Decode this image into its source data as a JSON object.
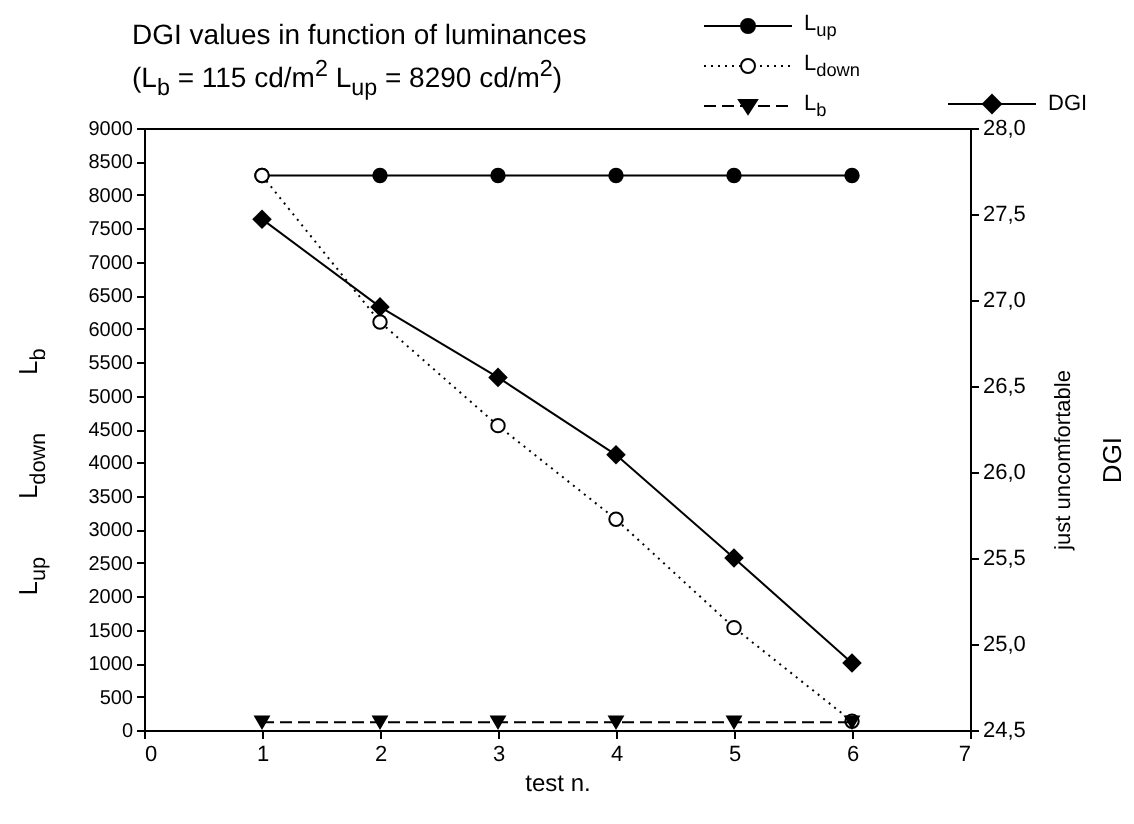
{
  "chart_data": {
    "type": "line",
    "title": "DGI values in function of luminances",
    "subtitle": "(L$_{b}$ = 115 cd/m$^{2}$ L$_{up}$ = 8290 cd/m$^{2}$)",
    "xlabel": "test n.",
    "ylabel": "L$_{up}$        L$_{down}$        L$_{b}$",
    "y2label": "DGI",
    "annotations": [
      "just uncomfortable"
    ],
    "x": [
      1,
      2,
      3,
      4,
      5,
      6
    ],
    "xlim": [
      0,
      7
    ],
    "xticks": [
      0,
      1,
      2,
      3,
      4,
      5,
      6,
      7
    ],
    "ylim": [
      0,
      9000
    ],
    "yticks": [
      0,
      500,
      1000,
      1500,
      2000,
      2500,
      3000,
      3500,
      4000,
      4500,
      5000,
      5500,
      6000,
      6500,
      7000,
      7500,
      8000,
      8500,
      9000
    ],
    "y2lim": [
      24.5,
      28
    ],
    "y2ticks": [
      {
        "value": 24.5,
        "label": "24,5"
      },
      {
        "value": 25,
        "label": "25,0"
      },
      {
        "value": 25.5,
        "label": "25,5"
      },
      {
        "value": 26,
        "label": "26,0"
      },
      {
        "value": 26.5,
        "label": "26,5"
      },
      {
        "value": 27,
        "label": "27,0"
      },
      {
        "value": 27.5,
        "label": "27,5"
      },
      {
        "value": 28,
        "label": "28,0"
      }
    ],
    "grid": false,
    "legend": "top right",
    "series": [
      {
        "name": "L$_{up}$",
        "color": "#000000",
        "marker": "circle",
        "line_style": "solid",
        "values": [
          8290,
          8290,
          8290,
          8290,
          8290,
          8290
        ]
      },
      {
        "name": "L$_{down}$",
        "color": "#000000",
        "marker": "circle",
        "line_style": "dotted",
        "values": [
          8290,
          6100,
          4550,
          3150,
          1530,
          130
        ]
      },
      {
        "name": "L$_{b}$",
        "color": "#000000",
        "marker": "triangle",
        "line_style": "dashed",
        "values": [
          115,
          115,
          115,
          115,
          115,
          115
        ]
      },
      {
        "name": "DGI",
        "color": "#000000",
        "marker": "diamond",
        "line_style": "solid",
        "axis": "y2",
        "values": [
          27.47,
          26.96,
          26.55,
          26.1,
          25.5,
          24.89
        ]
      }
    ]
  }
}
